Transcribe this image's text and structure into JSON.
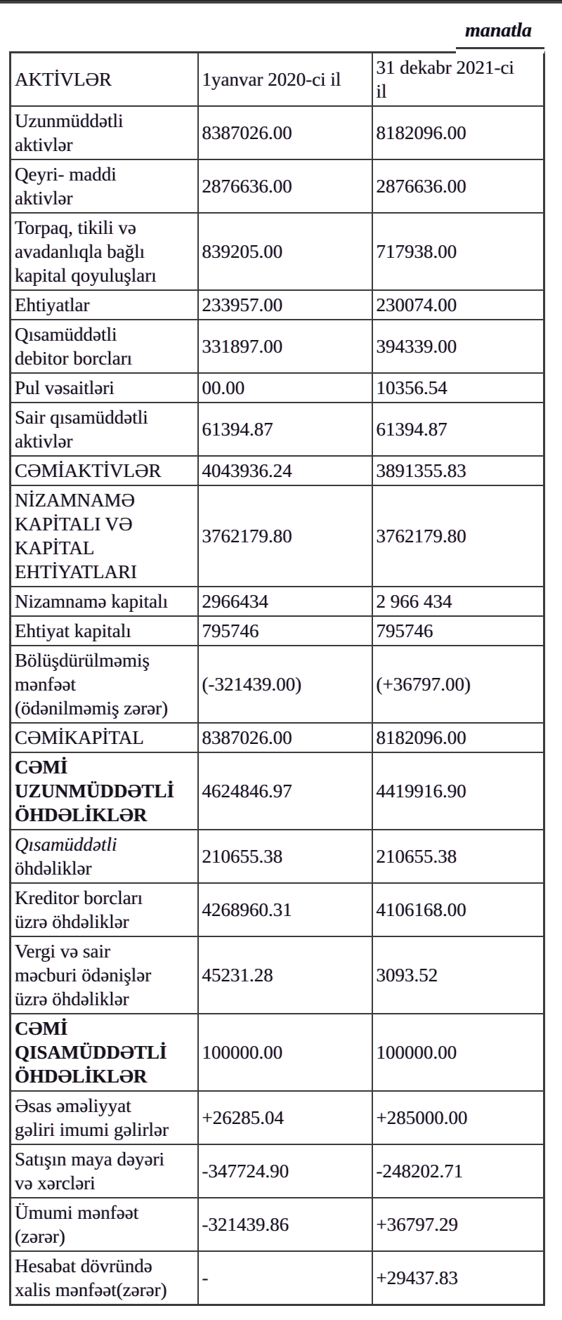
{
  "unit_note": "manatla",
  "colors": {
    "border": "#3b3b3b",
    "text": "#151515",
    "top_bar": "#414141",
    "background": "#ffffff"
  },
  "table": {
    "header": {
      "col_label": "AKTİVLƏR",
      "col_2020": "1yanvar 2020-ci il",
      "col_2021": "31 dekabr 2021-ci\nil"
    },
    "rows": [
      {
        "label": "Uzunmüddətli\naktivlər",
        "v2020": "8387026.00",
        "v2021": "8182096.00"
      },
      {
        "label": "Qeyri- maddi\naktivlər",
        "v2020": "2876636.00",
        "v2021": "2876636.00"
      },
      {
        "label": "Torpaq, tikili və\navadanlıqla bağlı\nkapital qoyuluşları",
        "v2020": "839205.00",
        "v2021": "717938.00"
      },
      {
        "label": "Ehtiyatlar",
        "v2020": "233957.00",
        "v2021": "230074.00"
      },
      {
        "label": "Qısamüddətli\ndebitor borcları",
        "v2020": "331897.00",
        "v2021": "394339.00"
      },
      {
        "label": "Pul vəsaitləri",
        "v2020": "00.00",
        "v2021": "10356.54"
      },
      {
        "label": "Sair qısamüddətli\naktivlər",
        "v2020": "61394.87",
        "v2021": "61394.87"
      },
      {
        "label": "CƏMİAKTİVLƏR",
        "v2020": "4043936.24",
        "v2021": "3891355.83"
      },
      {
        "label": "NİZAMNAMƏ\nKAPİTALI VƏ\nKAPİTAL\nEHTİYATLARI",
        "v2020": "3762179.80",
        "v2021": "3762179.80"
      },
      {
        "label": "Nizamnamə kapitalı",
        "v2020": "2966434",
        "v2021": "2 966 434"
      },
      {
        "label": "Ehtiyat kapitalı",
        "v2020": "795746",
        "v2021": "795746"
      },
      {
        "label": "Bölüşdürülməmiş\nmənfəət\n(ödənilməmiş zərər)",
        "v2020": "(-321439.00)",
        "v2021": "(+36797.00)"
      },
      {
        "label": "CƏMİKAPİTAL",
        "v2020": "8387026.00",
        "v2021": "8182096.00"
      },
      {
        "label": "CƏMİ\nUZUNMÜDDƏTLİ\nÖHDƏLİKLƏR",
        "bold": true,
        "v2020": "4624846.97",
        "v2021": "4419916.90"
      },
      {
        "label": "Qısamüddətli\nöhdəliklər",
        "lead_italic": true,
        "v2020": "210655.38",
        "v2021": "210655.38"
      },
      {
        "label": "Kreditor borcları\nüzrə öhdəliklər",
        "v2020": "4268960.31",
        "v2021": "4106168.00"
      },
      {
        "label": "Vergi və sair\nməcburi ödənişlər\nüzrə öhdəliklər",
        "v2020": "45231.28",
        "v2021": "3093.52"
      },
      {
        "label": "CƏMİ\nQISAMÜDDƏTLİ\nÖHDƏLİKLƏR",
        "bold": true,
        "v2020": "100000.00",
        "v2021": "100000.00"
      },
      {
        "label": "Əsas əməliyyat\ngəliri imumi gəlirlər",
        "v2020": "+26285.04",
        "v2021": "+285000.00"
      },
      {
        "label": "Satışın maya dəyəri\nvə xərcləri",
        "v2020": "-347724.90",
        "v2021": "-248202.71"
      },
      {
        "label": "Ümumi mənfəət\n(zərər)",
        "v2020": "-321439.86",
        "v2021": "+36797.29"
      },
      {
        "label": "Hesabat dövründə\nxalis mənfəət(zərər)",
        "v2020": "-",
        "v2021": "+29437.83"
      }
    ]
  }
}
